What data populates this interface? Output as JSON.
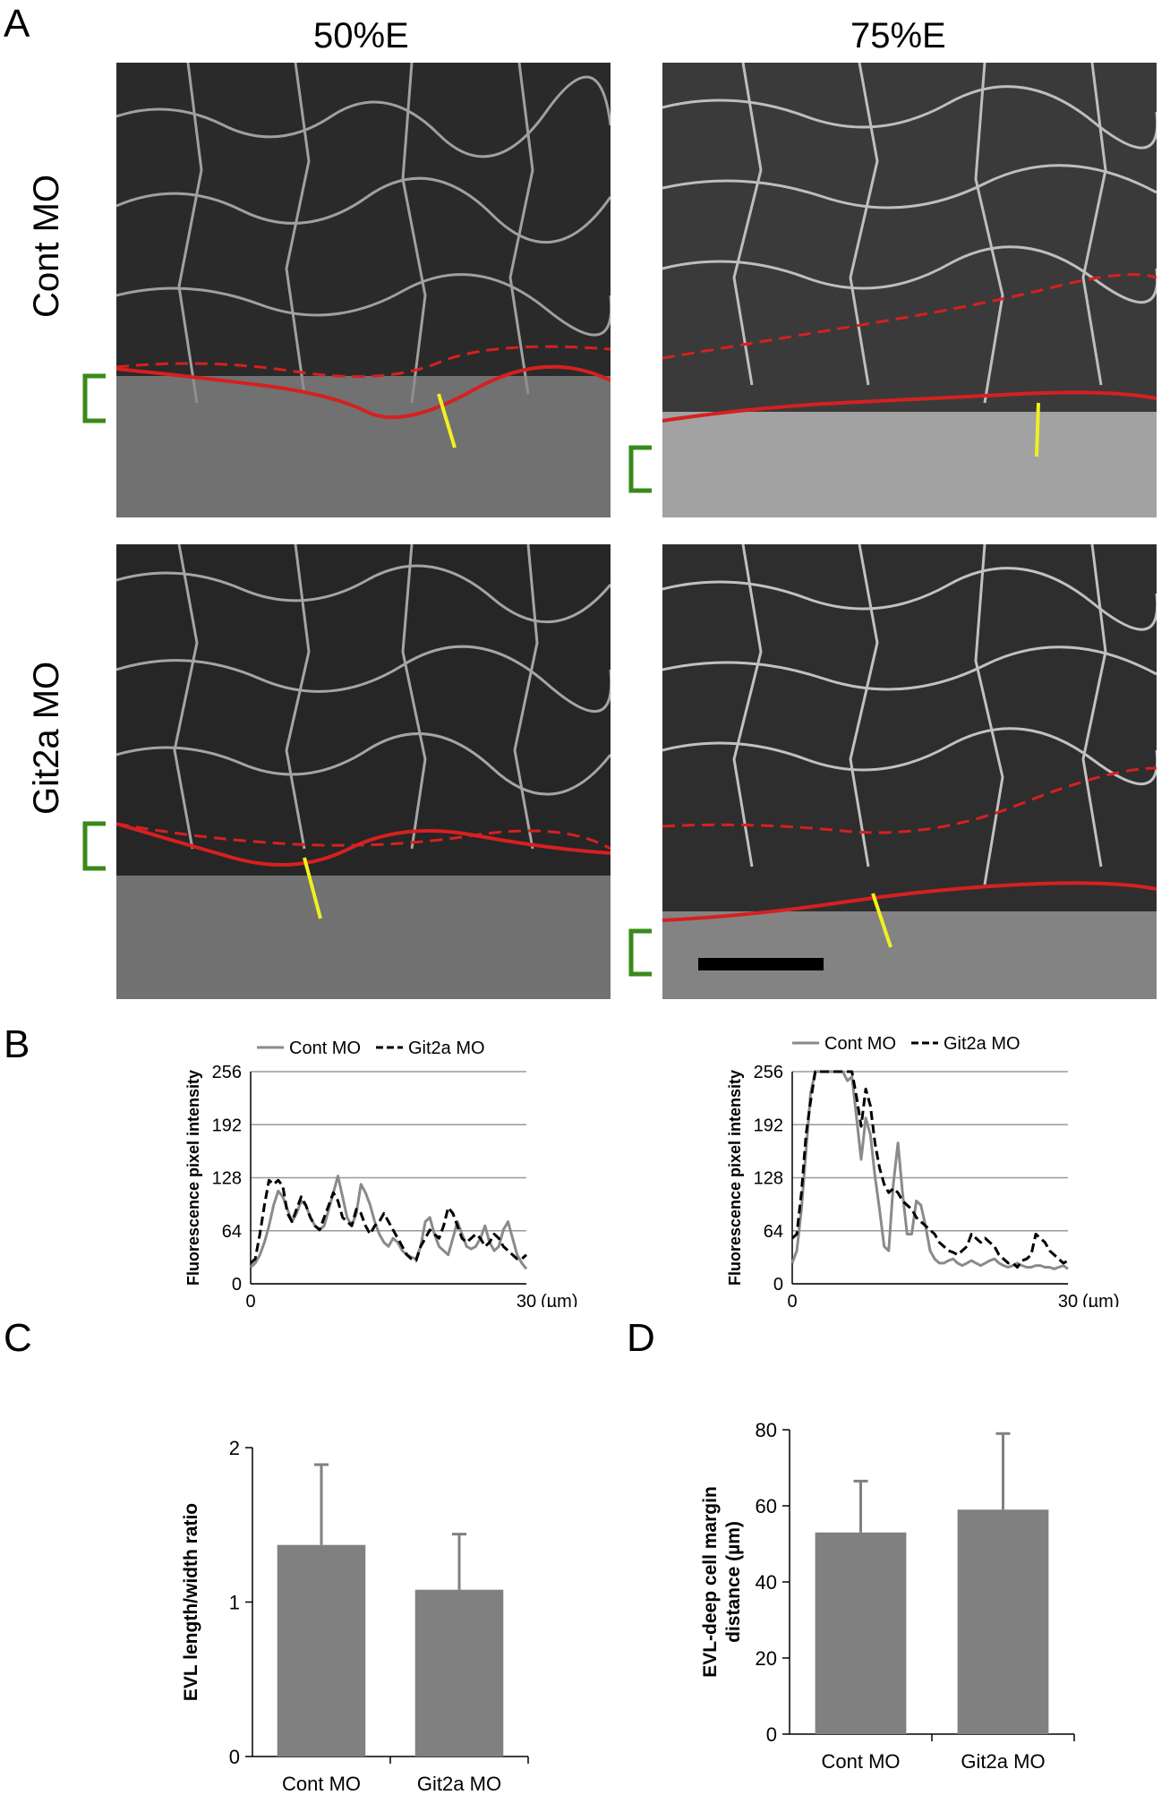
{
  "panels": {
    "a": "A",
    "b": "B",
    "c": "C",
    "d": "D"
  },
  "panel_a": {
    "columns": [
      "50%E",
      "75%E"
    ],
    "rows": [
      "Cont MO",
      "Git2a MO"
    ],
    "colors": {
      "evl_margin_dashed": "#d62020",
      "deep_cell_margin": "#d62020",
      "profile_line": "#f0f020",
      "bracket": "#3a8a1a",
      "scale_bar": "#000000"
    }
  },
  "chart_data": [
    {
      "type": "line",
      "panel": "B-left",
      "ylabel": "Fluorescence pixel intensity",
      "x_ticks": [
        "0",
        "30"
      ],
      "x_unit": "(µm)",
      "y_ticks": [
        "0",
        "64",
        "128",
        "192",
        "256"
      ],
      "xlim": [
        0,
        30
      ],
      "ylim": [
        0,
        256
      ],
      "grid": true,
      "legend_position": "top",
      "series": [
        {
          "name": "Cont MO",
          "color": "#8a8a8a",
          "dash": "solid",
          "x": [
            0,
            0.5,
            1,
            1.5,
            2,
            2.5,
            3,
            3.5,
            4,
            4.5,
            5,
            5.5,
            6,
            6.5,
            7,
            7.5,
            8,
            8.5,
            9,
            9.5,
            10,
            10.5,
            11,
            11.5,
            12,
            12.5,
            13,
            13.5,
            14,
            14.5,
            15,
            15.5,
            16,
            16.5,
            17,
            17.5,
            18,
            18.5,
            19,
            19.5,
            20,
            20.5,
            21,
            21.5,
            22,
            22.5,
            23,
            23.5,
            24,
            24.5,
            25,
            25.5,
            26,
            26.5,
            27,
            27.5,
            28,
            28.5,
            29,
            29.5,
            30
          ],
          "y": [
            20,
            25,
            35,
            50,
            70,
            95,
            112,
            105,
            90,
            75,
            85,
            100,
            95,
            80,
            70,
            65,
            70,
            90,
            110,
            130,
            105,
            80,
            70,
            85,
            120,
            110,
            95,
            75,
            60,
            50,
            45,
            55,
            50,
            40,
            35,
            32,
            30,
            45,
            75,
            80,
            60,
            45,
            40,
            35,
            55,
            75,
            60,
            45,
            42,
            45,
            55,
            70,
            50,
            40,
            45,
            65,
            75,
            55,
            35,
            25,
            18
          ],
          "values": [
            20,
            25,
            35,
            50,
            70,
            95,
            112,
            105,
            90,
            75,
            85,
            100,
            95,
            80,
            70,
            65,
            70,
            90,
            110,
            130,
            105,
            80,
            70,
            85,
            120,
            110,
            95,
            75,
            60,
            50,
            45,
            55,
            50,
            40,
            35,
            32,
            30,
            45,
            75,
            80,
            60,
            45,
            40,
            35,
            55,
            75,
            60,
            45,
            42,
            45,
            55,
            70,
            50,
            40,
            45,
            65,
            75,
            55,
            35,
            25,
            18
          ]
        },
        {
          "name": "Git2a MO",
          "color": "#000000",
          "dash": "dashed",
          "x": [
            0,
            0.5,
            1,
            1.5,
            2,
            2.5,
            3,
            3.5,
            4,
            4.5,
            5,
            5.5,
            6,
            6.5,
            7,
            7.5,
            8,
            8.5,
            9,
            9.5,
            10,
            10.5,
            11,
            11.5,
            12,
            12.5,
            13,
            13.5,
            14,
            14.5,
            15,
            15.5,
            16,
            16.5,
            17,
            17.5,
            18,
            18.5,
            19,
            19.5,
            20,
            20.5,
            21,
            21.5,
            22,
            22.5,
            23,
            23.5,
            24,
            24.5,
            25,
            25.5,
            26,
            26.5,
            27,
            27.5,
            28,
            28.5,
            29,
            29.5,
            30
          ],
          "y": [
            25,
            30,
            60,
            95,
            125,
            120,
            125,
            118,
            85,
            75,
            90,
            105,
            95,
            80,
            70,
            65,
            80,
            95,
            110,
            100,
            80,
            75,
            70,
            90,
            85,
            70,
            60,
            70,
            75,
            85,
            75,
            65,
            55,
            45,
            35,
            30,
            28,
            45,
            55,
            65,
            60,
            55,
            70,
            92,
            85,
            70,
            55,
            50,
            55,
            60,
            55,
            45,
            50,
            60,
            55,
            45,
            40,
            35,
            30,
            30,
            35
          ],
          "values": [
            25,
            30,
            60,
            95,
            125,
            120,
            125,
            118,
            85,
            75,
            90,
            105,
            95,
            80,
            70,
            65,
            80,
            95,
            110,
            100,
            80,
            75,
            70,
            90,
            85,
            70,
            60,
            70,
            75,
            85,
            75,
            65,
            55,
            45,
            35,
            30,
            28,
            45,
            55,
            65,
            60,
            55,
            70,
            92,
            85,
            70,
            55,
            50,
            55,
            60,
            55,
            45,
            50,
            60,
            55,
            45,
            40,
            35,
            30,
            30,
            35
          ]
        }
      ]
    },
    {
      "type": "line",
      "panel": "B-right",
      "ylabel": "Fluorescence pixel intensity",
      "x_ticks": [
        "0",
        "30"
      ],
      "x_unit": "(µm)",
      "y_ticks": [
        "0",
        "64",
        "128",
        "192",
        "256"
      ],
      "xlim": [
        0,
        30
      ],
      "ylim": [
        0,
        256
      ],
      "grid": true,
      "legend_position": "top",
      "series": [
        {
          "name": "Cont MO",
          "color": "#8a8a8a",
          "dash": "solid",
          "x": [
            0,
            0.5,
            1,
            1.5,
            2,
            2.5,
            3,
            3.5,
            4,
            4.5,
            5,
            5.5,
            6,
            6.5,
            7,
            7.5,
            8,
            8.5,
            9,
            9.5,
            10,
            10.5,
            11,
            11.5,
            12,
            12.5,
            13,
            13.5,
            14,
            14.5,
            15,
            15.5,
            16,
            16.5,
            17,
            17.5,
            18,
            18.5,
            19,
            19.5,
            20,
            20.5,
            21,
            21.5,
            22,
            22.5,
            23,
            23.5,
            24,
            24.5,
            25,
            25.5,
            26,
            26.5,
            27,
            27.5,
            28,
            28.5,
            29,
            29.5,
            30
          ],
          "y": [
            25,
            40,
            90,
            160,
            230,
            256,
            256,
            256,
            256,
            256,
            256,
            256,
            245,
            250,
            200,
            150,
            200,
            180,
            130,
            90,
            45,
            40,
            120,
            170,
            110,
            60,
            60,
            100,
            95,
            70,
            40,
            30,
            25,
            25,
            28,
            30,
            25,
            22,
            25,
            28,
            25,
            22,
            25,
            28,
            30,
            25,
            22,
            20,
            22,
            25,
            22,
            20,
            20,
            22,
            22,
            20,
            20,
            18,
            20,
            22,
            18
          ],
          "values": [
            25,
            40,
            90,
            160,
            230,
            256,
            256,
            256,
            256,
            256,
            256,
            256,
            245,
            250,
            200,
            150,
            200,
            180,
            130,
            90,
            45,
            40,
            120,
            170,
            110,
            60,
            60,
            100,
            95,
            70,
            40,
            30,
            25,
            25,
            28,
            30,
            25,
            22,
            25,
            28,
            25,
            22,
            25,
            28,
            30,
            25,
            22,
            20,
            22,
            25,
            22,
            20,
            20,
            22,
            22,
            20,
            20,
            18,
            20,
            22,
            18
          ]
        },
        {
          "name": "Git2a MO",
          "color": "#000000",
          "dash": "dashed",
          "x": [
            0,
            0.5,
            1,
            1.5,
            2,
            2.5,
            3,
            3.5,
            4,
            4.5,
            5,
            5.5,
            6,
            6.5,
            7,
            7.5,
            8,
            8.5,
            9,
            9.5,
            10,
            10.5,
            11,
            11.5,
            12,
            12.5,
            13,
            13.5,
            14,
            14.5,
            15,
            15.5,
            16,
            16.5,
            17,
            17.5,
            18,
            18.5,
            19,
            19.5,
            20,
            20.5,
            21,
            21.5,
            22,
            22.5,
            23,
            23.5,
            24,
            24.5,
            25,
            25.5,
            26,
            26.5,
            27,
            27.5,
            28,
            28.5,
            29,
            29.5,
            30
          ],
          "y": [
            55,
            60,
            110,
            180,
            220,
            256,
            256,
            256,
            256,
            256,
            256,
            256,
            256,
            256,
            225,
            190,
            235,
            215,
            170,
            140,
            120,
            110,
            115,
            110,
            100,
            95,
            90,
            80,
            75,
            70,
            65,
            60,
            50,
            45,
            40,
            38,
            35,
            40,
            45,
            60,
            55,
            50,
            55,
            50,
            45,
            35,
            30,
            25,
            25,
            20,
            28,
            30,
            35,
            60,
            55,
            50,
            40,
            35,
            30,
            25,
            28
          ],
          "values": [
            55,
            60,
            110,
            180,
            220,
            256,
            256,
            256,
            256,
            256,
            256,
            256,
            256,
            256,
            225,
            190,
            235,
            215,
            170,
            140,
            120,
            110,
            115,
            110,
            100,
            95,
            90,
            80,
            75,
            70,
            65,
            60,
            50,
            45,
            40,
            38,
            35,
            40,
            45,
            60,
            55,
            50,
            55,
            50,
            45,
            35,
            30,
            25,
            25,
            20,
            28,
            30,
            35,
            60,
            55,
            50,
            40,
            35,
            30,
            25,
            28
          ]
        }
      ]
    },
    {
      "type": "bar",
      "panel": "C",
      "ylabel": "EVL length/width ratio",
      "categories": [
        "Cont MO",
        "Git2a MO"
      ],
      "values": [
        1.37,
        1.08
      ],
      "error": [
        0.52,
        0.36
      ],
      "ylim": [
        0,
        2
      ],
      "y_ticks": [
        "0",
        "1",
        "2"
      ],
      "bar_color": "#808080"
    },
    {
      "type": "bar",
      "panel": "D",
      "ylabel_lines": [
        "EVL-deep cell margin",
        "distance (µm)"
      ],
      "categories": [
        "Cont MO",
        "Git2a MO"
      ],
      "values": [
        53,
        59
      ],
      "error": [
        13.5,
        20
      ],
      "ylim": [
        0,
        80
      ],
      "y_ticks": [
        "0",
        "20",
        "40",
        "60",
        "80"
      ],
      "bar_color": "#808080"
    }
  ]
}
